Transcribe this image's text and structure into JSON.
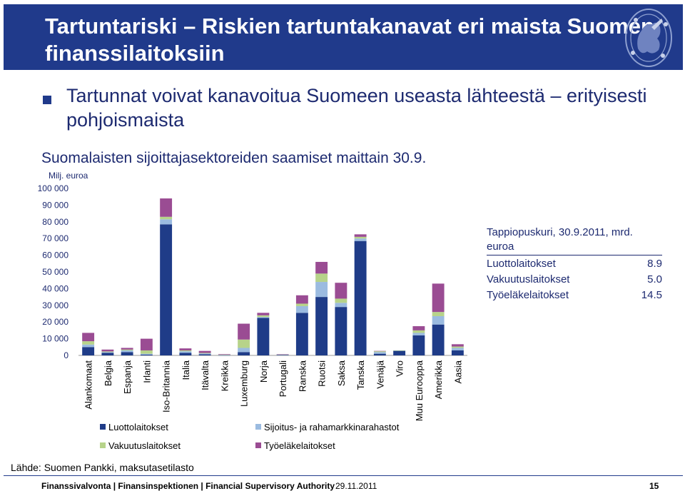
{
  "header": {
    "title": "Tartuntariski – Riskien tartuntakanavat eri maista Suomen finanssilaitoksiin"
  },
  "bullet": {
    "text": "Tartunnat voivat kanavoitua Suomeen useasta lähteestä – erityisesti pohjoismaista"
  },
  "info_box": {
    "title": "Tappiopuskuri, 30.9.2011, mrd. euroa",
    "rows": [
      {
        "label": "Luottolaitokset",
        "value": "8.9"
      },
      {
        "label": "Vakuutuslaitokset",
        "value": "5.0"
      },
      {
        "label": "Työeläkelaitokset",
        "value": "14.5"
      }
    ]
  },
  "source": "Lähde: Suomen Pankki, maksutasetilasto",
  "footer": {
    "text": "Finanssivalvonta | Finansinspektionen | Financial Supervisory Authority",
    "date": "29.11.2011",
    "page": "15"
  },
  "chart_data": {
    "type": "bar",
    "stacked": true,
    "title": "Suomalaisten sijoittajasektoreiden saamiset maittain 30.9.",
    "ylabel": "Milj. euroa",
    "ylim": [
      0,
      100000
    ],
    "yticks": [
      0,
      10000,
      20000,
      30000,
      40000,
      50000,
      60000,
      70000,
      80000,
      90000,
      100000
    ],
    "ytick_labels": [
      "0",
      "10 000",
      "20 000",
      "30 000",
      "40 000",
      "50 000",
      "60 000",
      "70 000",
      "80 000",
      "90 000",
      "100 000"
    ],
    "categories": [
      "Alankomaat",
      "Belgia",
      "Espanja",
      "Irlanti",
      "Iso-Britannia",
      "Italia",
      "Itävalta",
      "Kreikka",
      "Luxemburg",
      "Norja",
      "Portugali",
      "Ranska",
      "Ruotsi",
      "Saksa",
      "Tanska",
      "Venäjä",
      "Viro",
      "Muu Eurooppa",
      "Amerikka",
      "Aasia"
    ],
    "series": [
      {
        "name": "Luottolaitokset",
        "color": "#1f3c88",
        "values": [
          5000,
          1600,
          2000,
          500,
          78500,
          1500,
          700,
          100,
          2000,
          22500,
          300,
          25500,
          35000,
          29000,
          68500,
          1000,
          2800,
          12000,
          18500,
          3000
        ]
      },
      {
        "name": "Sijoitus- ja rahamarkkinarahastot",
        "color": "#9bbbe0",
        "values": [
          1500,
          400,
          1000,
          500,
          3000,
          1000,
          500,
          200,
          2500,
          500,
          200,
          4000,
          9000,
          2500,
          1500,
          1000,
          100,
          1500,
          5000,
          1500
        ]
      },
      {
        "name": "Vakuutuslaitokset",
        "color": "#b7d38a",
        "values": [
          2000,
          400,
          500,
          2000,
          1500,
          500,
          300,
          200,
          5000,
          1000,
          100,
          1500,
          5000,
          2500,
          1000,
          500,
          100,
          1500,
          2500,
          800
        ]
      },
      {
        "name": "Työeläkelaitokset",
        "color": "#9a4c93",
        "values": [
          5000,
          1100,
          1000,
          7000,
          11000,
          1200,
          1200,
          300,
          9500,
          1500,
          100,
          5000,
          7000,
          9500,
          1500,
          200,
          0,
          2500,
          17000,
          1400
        ]
      }
    ],
    "legend_position": "bottom",
    "grid": false
  }
}
